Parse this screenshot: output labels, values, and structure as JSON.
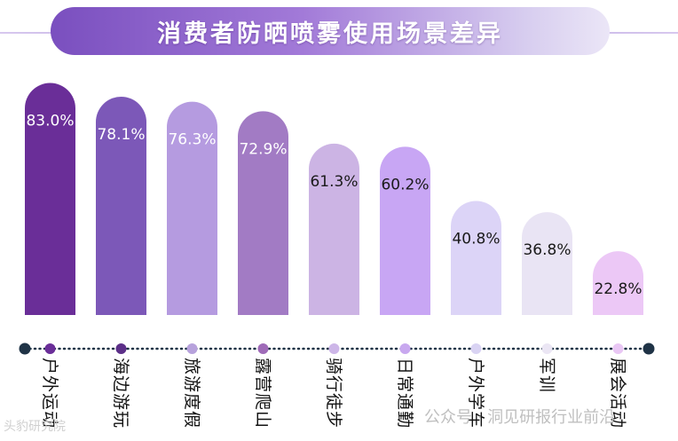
{
  "title": "消费者防晒喷雾使用场景差异",
  "chart_data": {
    "type": "bar",
    "title": "消费者防晒喷雾使用场景差异",
    "categories": [
      "户外运动",
      "海边游玩",
      "旅游度假",
      "露营爬山",
      "骑行徒步",
      "日常通勤",
      "户外学车",
      "军训",
      "展会活动"
    ],
    "values": [
      83.0,
      78.1,
      76.3,
      72.9,
      61.3,
      60.2,
      40.8,
      36.8,
      22.8
    ],
    "value_labels": [
      "83.0%",
      "78.1%",
      "76.3%",
      "72.9%",
      "61.3%",
      "60.2%",
      "40.8%",
      "36.8%",
      "22.8%"
    ],
    "unit": "%",
    "ylim": [
      0,
      100
    ],
    "xlabel": "",
    "ylabel": "",
    "grid": false,
    "legend": "none"
  },
  "colors": {
    "bars": [
      "#6a2e98",
      "#7c58b8",
      "#b59be0",
      "#a27bc4",
      "#ccb4e4",
      "#c8a6f4",
      "#dcd4f7",
      "#e9e4f4",
      "#ecc8f6"
    ],
    "dots": [
      "#1f3346",
      "#6a2e98",
      "#5c2f88",
      "#b7a2dc",
      "#9f6bb8",
      "#cdb6e8",
      "#c8a8ef",
      "#d9d3f3",
      "#ebe6f4",
      "#e9c7f4",
      "#1f3346"
    ],
    "label_light": "#ffffff",
    "label_dark": "#1a1a1a"
  },
  "watermarks": {
    "left": "头豹研究院",
    "right": "公众号 · 洞见研报行业前沿"
  }
}
